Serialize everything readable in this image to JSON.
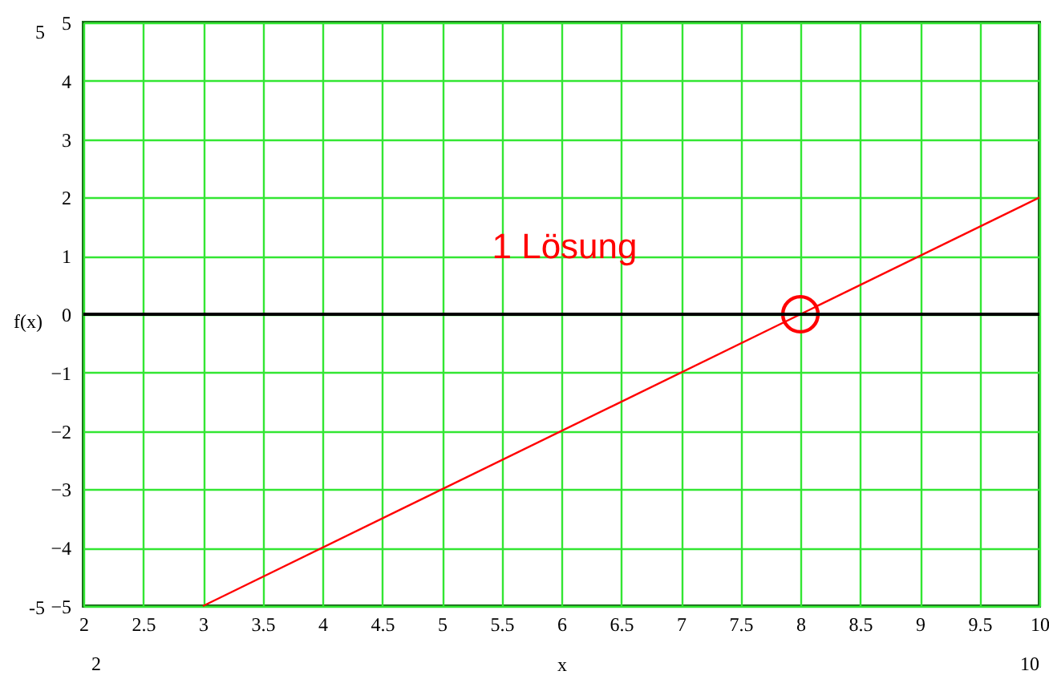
{
  "chart_data": {
    "type": "line",
    "xlabel": "x",
    "ylabel": "f(x)",
    "series": [
      {
        "color": "#ff0000",
        "x": [
          3,
          10
        ],
        "values": [
          -5,
          2
        ]
      },
      {
        "type": "scatter",
        "color": "#ff0000",
        "x": [
          8
        ],
        "values": [
          0
        ],
        "marker": "circle"
      }
    ],
    "xlim": [
      2,
      10
    ],
    "xticks": [
      2,
      2.5,
      3,
      3.5,
      4,
      4.5,
      5,
      5.5,
      6,
      6.5,
      7,
      7.5,
      8,
      8.5,
      9,
      9.5,
      10
    ],
    "ylim": [
      -5,
      5
    ],
    "yticks": [
      -5,
      -4,
      -3,
      -2,
      -1,
      0,
      1,
      2,
      3,
      4,
      5
    ],
    "grid": true,
    "ref_lines": [
      {
        "axis": "y",
        "value": 0,
        "color": "#000000"
      }
    ],
    "annotations": [
      "1 Lösung",
      "5",
      "-5",
      "2",
      "10"
    ]
  }
}
